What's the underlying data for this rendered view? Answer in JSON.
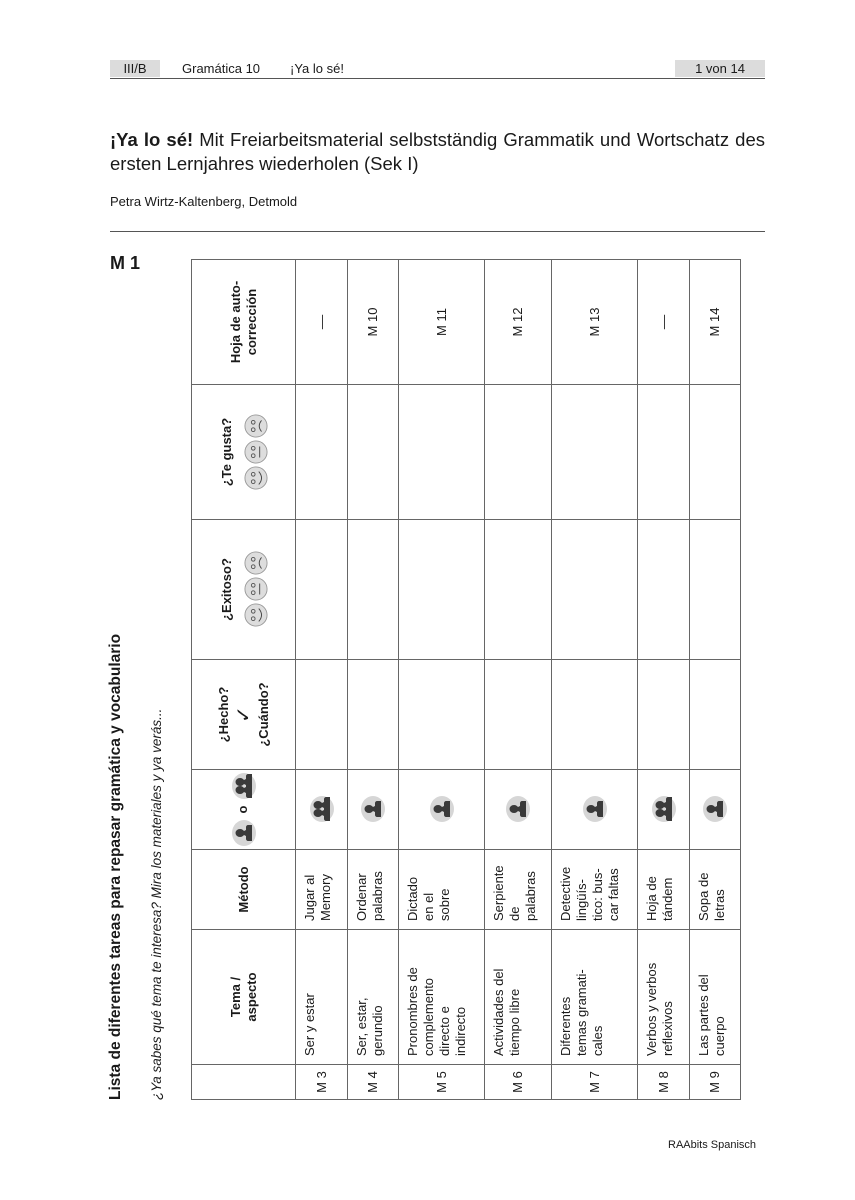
{
  "header": {
    "section": "III/B",
    "series": "Gramática 10",
    "unit": "¡Ya lo sé!",
    "page": "1 von 14"
  },
  "title": {
    "bold": "¡Ya lo sé!",
    "rest": " Mit Freiarbeitsmaterial selbstständig Grammatik und Wortschatz des ersten Lernjahres wiederholen (Sek I)"
  },
  "author": "Petra Wirtz-Kaltenberg, Detmold",
  "material_label": "M 1",
  "list_title": "Lista de diferentes tareas para repasar gramática y vocabulario",
  "list_subtitle": "¿Ya sabes qué tema te interesa? Mira los materiales y ya verás...",
  "table": {
    "headers": {
      "tema": "Tema /\naspecto",
      "metodo": "Método",
      "social_or": "o",
      "hecho": "¿Hecho?",
      "check": "✓",
      "cuando": "¿Cuándo?",
      "exitoso": "¿Exitoso?",
      "te_gusta": "¿Te gusta?",
      "hoja": "Hoja de auto-\ncorrección"
    },
    "rating_faces": [
      "happy-face",
      "neutral-face",
      "sad-face"
    ],
    "rows": [
      {
        "m": "M 3",
        "tema": "Ser y estar",
        "metodo": "Jugar al\nMemory",
        "social": "pair",
        "hoja": "––"
      },
      {
        "m": "M 4",
        "tema": "Ser, estar,\ngerundio",
        "metodo": "Ordenar\npalabras",
        "social": "single",
        "hoja": "M 10"
      },
      {
        "m": "M 5",
        "tema": "Pronombres de\ncomplemento\ndirecto e\nindirecto",
        "metodo": "Dictado\nen el\nsobre",
        "social": "single",
        "hoja": "M 11"
      },
      {
        "m": "M 6",
        "tema": "Actividades del\ntiempo libre",
        "metodo": "Serpiente\nde\npalabras",
        "social": "single",
        "hoja": "M 12"
      },
      {
        "m": "M 7",
        "tema": "Diferentes\ntemas gramati-\ncales",
        "metodo": "Detective\nlingüís-\ntico: bus-\ncar faltas",
        "social": "single",
        "hoja": "M 13"
      },
      {
        "m": "M 8",
        "tema": "Verbos y verbos\nreflexivos",
        "metodo": "Hoja de\ntándem",
        "social": "pair",
        "hoja": "––"
      },
      {
        "m": "M 9",
        "tema": "Las partes del\ncuerpo",
        "metodo": "Sopa de\nletras",
        "social": "single",
        "hoja": "M 14"
      }
    ]
  },
  "footer": "RAAbits Spanisch",
  "colors": {
    "icon_bg": "#d6d6d6",
    "icon_fg": "#3a3a3a",
    "header_box": "#dcdcdc"
  }
}
